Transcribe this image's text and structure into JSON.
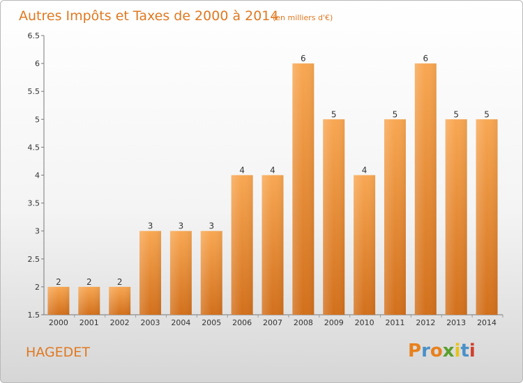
{
  "chart_data": {
    "type": "bar",
    "title": "Autres Impôts et Taxes de 2000 à 2014",
    "subtitle": "(en milliers d'€)",
    "categories": [
      "2000",
      "2001",
      "2002",
      "2003",
      "2004",
      "2005",
      "2006",
      "2007",
      "2008",
      "2009",
      "2010",
      "2011",
      "2012",
      "2013",
      "2014"
    ],
    "values": [
      2,
      2,
      2,
      3,
      3,
      3,
      4,
      4,
      6,
      5,
      4,
      5,
      6,
      5,
      5
    ],
    "data_labels": [
      "2",
      "2",
      "2",
      "3",
      "3",
      "3",
      "4",
      "4",
      "6",
      "5",
      "4",
      "5",
      "6",
      "5",
      "5"
    ],
    "ylim": [
      1.5,
      6.5
    ],
    "yticks": [
      "1.5",
      "2",
      "2.5",
      "3",
      "3.5",
      "4",
      "4.5",
      "5",
      "5.5",
      "6",
      "6.5"
    ],
    "grid": false,
    "bar_color": "#f39c43"
  },
  "location": "HAGEDET",
  "logo": {
    "text": "Proxiti",
    "colors": [
      "#e8801c",
      "#4a90c8",
      "#e8801c",
      "#5aa02c",
      "#e8c21c",
      "#4a90c8",
      "#d0402c"
    ]
  }
}
